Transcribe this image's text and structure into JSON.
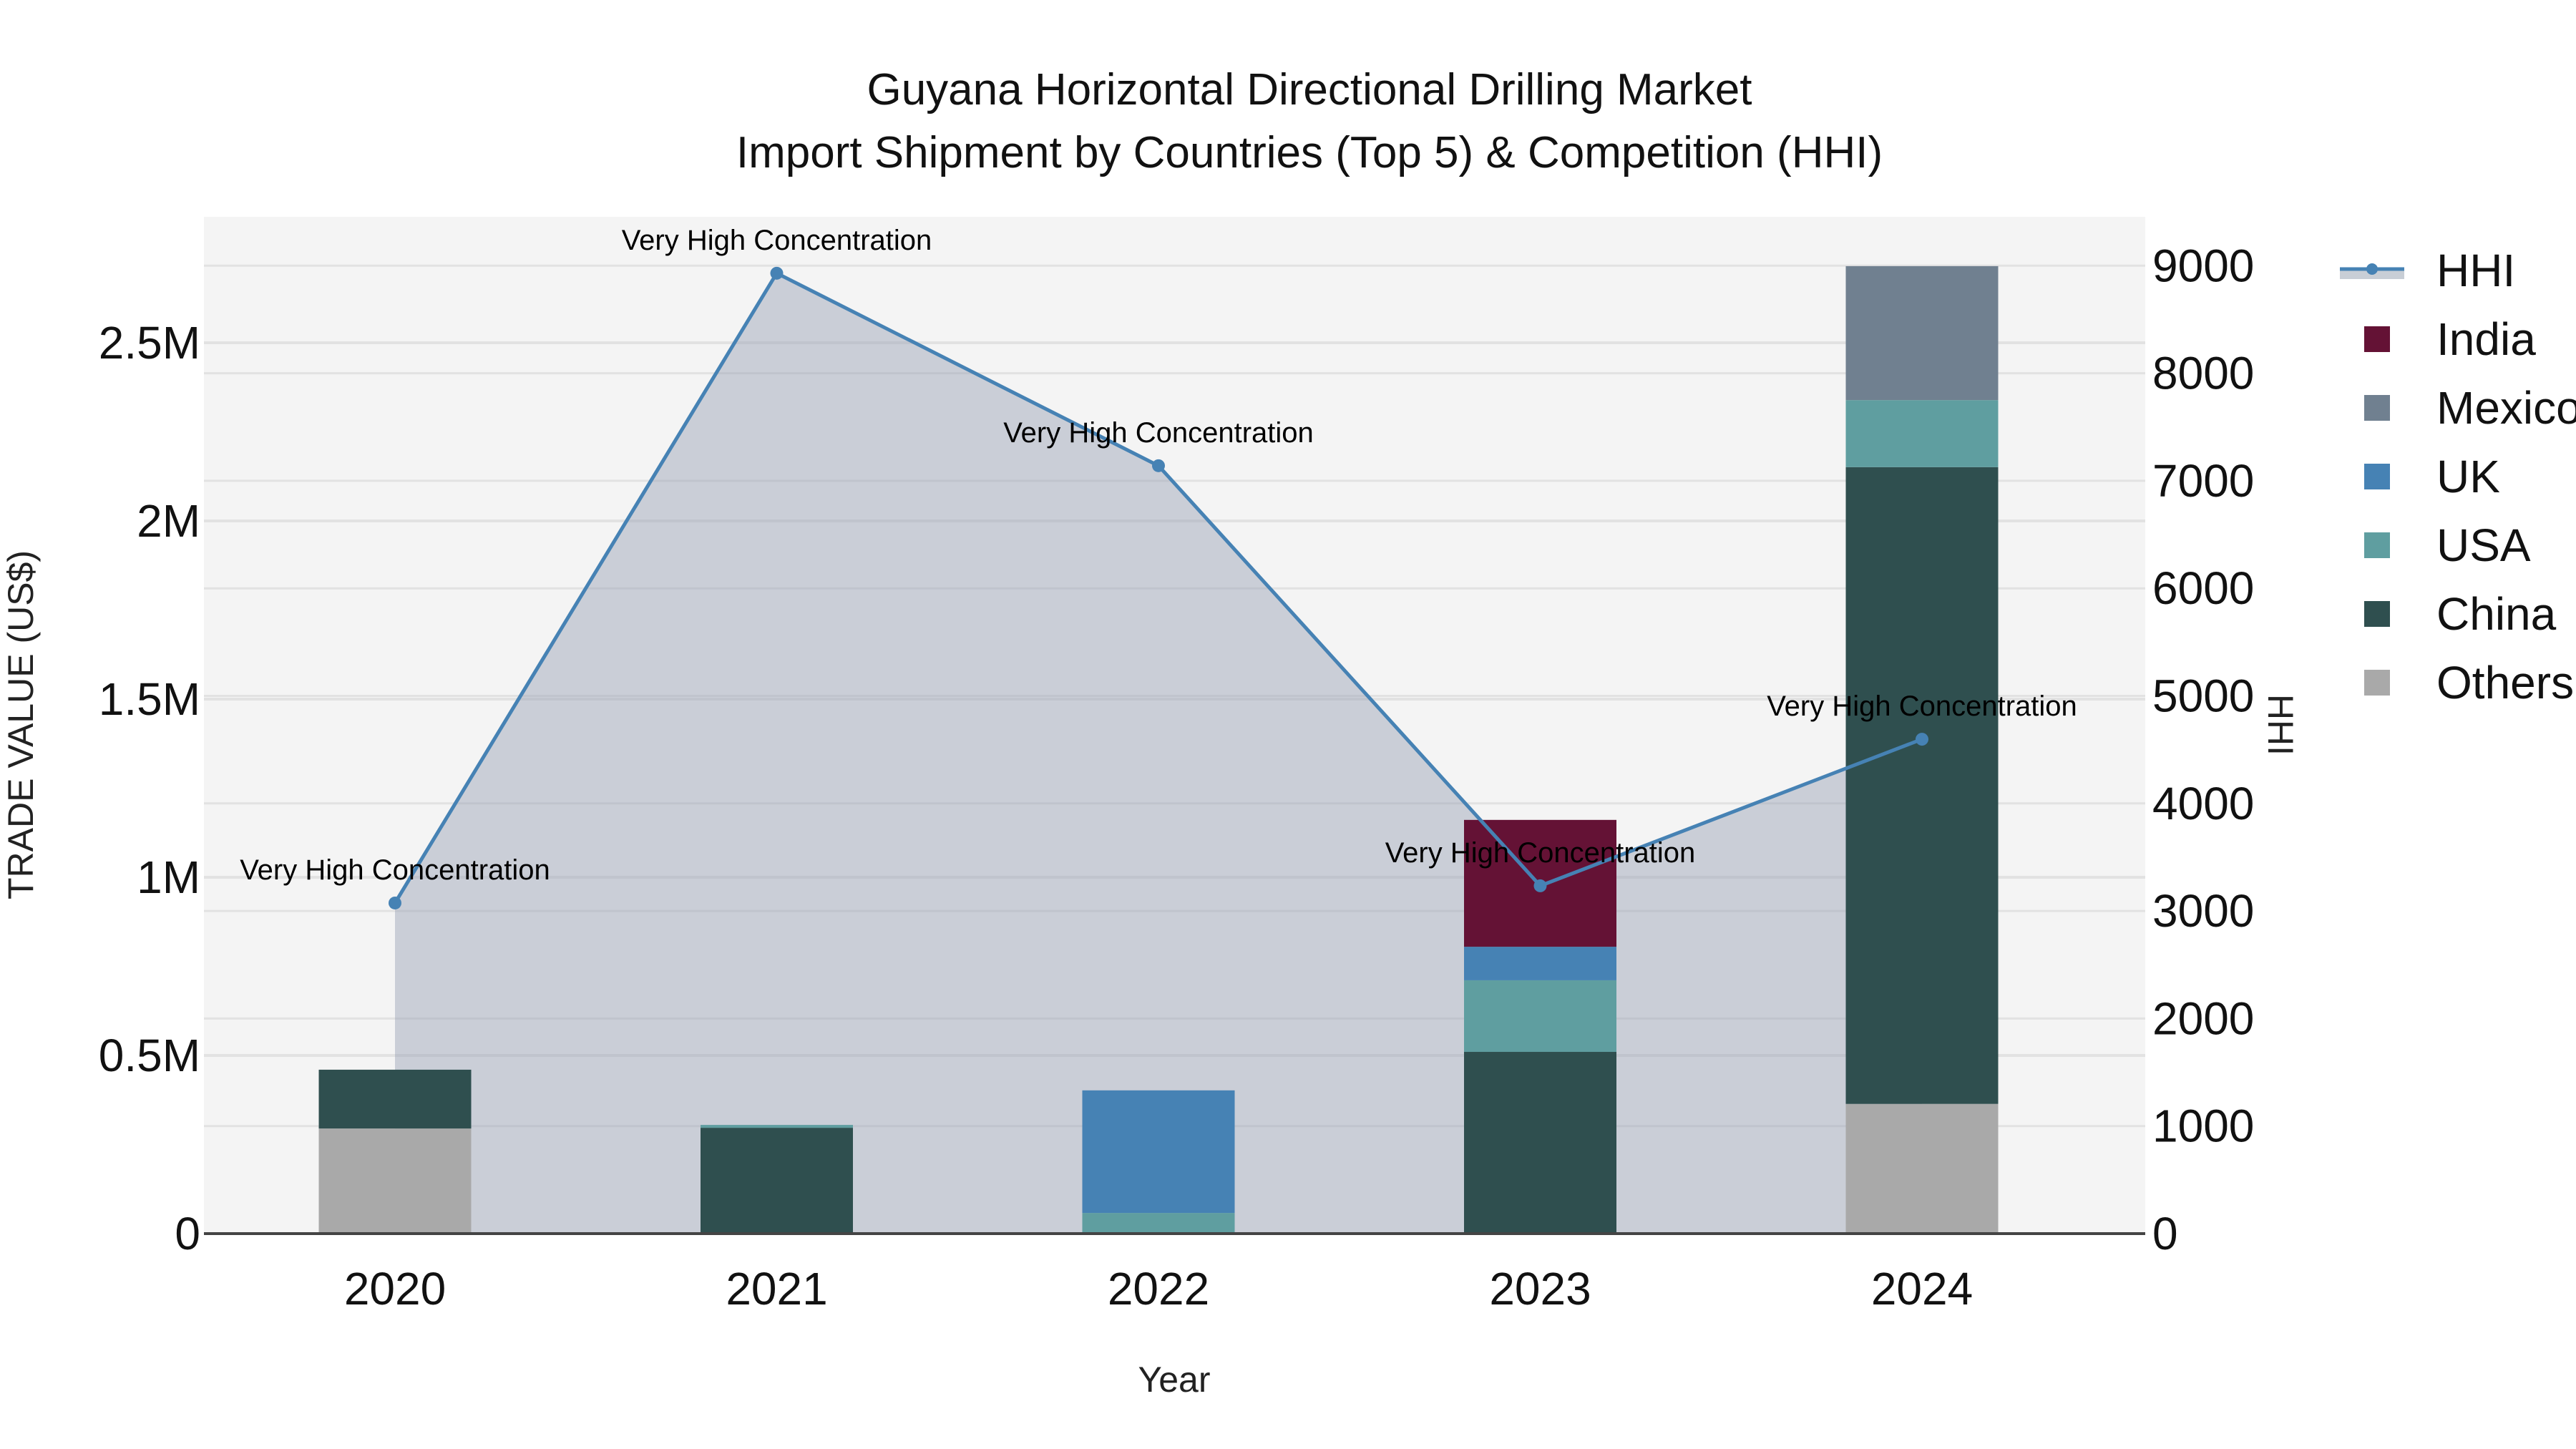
{
  "title": {
    "line1": "Guyana Horizontal Directional Drilling Market",
    "line2": "Import Shipment by Countries (Top 5) & Competition (HHI)"
  },
  "axes": {
    "x_label": "Year",
    "y_left_label": "TRADE VALUE (US$)",
    "y_right_label": "HHI",
    "y_left_ticks": [
      "0",
      "0.5M",
      "1M",
      "1.5M",
      "2M",
      "2.5M"
    ],
    "y_right_ticks": [
      "0",
      "1000",
      "2000",
      "3000",
      "4000",
      "5000",
      "6000",
      "7000",
      "8000",
      "9000"
    ],
    "x_ticks": [
      "2020",
      "2021",
      "2022",
      "2023",
      "2024"
    ]
  },
  "legend": {
    "items": [
      {
        "label": "HHI",
        "color": "#4682B4"
      },
      {
        "label": "India",
        "color": "#641235"
      },
      {
        "label": "Mexico",
        "color": "#708090"
      },
      {
        "label": "UK",
        "color": "#4682B4"
      },
      {
        "label": "USA",
        "color": "#5F9EA0"
      },
      {
        "label": "China",
        "color": "#2F4F4F"
      },
      {
        "label": "Others",
        "color": "#A9A9A9"
      }
    ]
  },
  "annotations": [
    "Very High Concentration",
    "Very High Concentration",
    "Very High Concentration",
    "Very High Concentration",
    "Very High Concentration"
  ],
  "chart_data": {
    "type": "bar",
    "title": "Guyana Horizontal Directional Drilling Market Import Shipment by Countries (Top 5) & Competition (HHI)",
    "xlabel": "Year",
    "ylabel": "TRADE VALUE (US$)",
    "y2label": "HHI",
    "categories": [
      "2020",
      "2021",
      "2022",
      "2023",
      "2024"
    ],
    "stacked": true,
    "series": [
      {
        "name": "Others",
        "color": "#A9A9A9",
        "values": [
          295000,
          0,
          0,
          0,
          364000
        ]
      },
      {
        "name": "China",
        "color": "#2F4F4F",
        "values": [
          165000,
          297000,
          0,
          510000,
          1787000
        ]
      },
      {
        "name": "USA",
        "color": "#5F9EA0",
        "values": [
          0,
          8000,
          58000,
          201000,
          188000
        ]
      },
      {
        "name": "UK",
        "color": "#4682B4",
        "values": [
          0,
          0,
          344000,
          94000,
          0
        ]
      },
      {
        "name": "Mexico",
        "color": "#708090",
        "values": [
          0,
          0,
          0,
          0,
          376000
        ]
      },
      {
        "name": "India",
        "color": "#641235",
        "values": [
          0,
          0,
          0,
          356000,
          0
        ]
      }
    ],
    "line_series": {
      "name": "HHI",
      "axis": "right",
      "color": "#4682B4",
      "fill": "tozeroy",
      "values": [
        3074,
        8930,
        7140,
        3234,
        4597
      ],
      "annotations": [
        "Very High Concentration",
        "Very High Concentration",
        "Very High Concentration",
        "Very High Concentration",
        "Very High Concentration"
      ]
    },
    "ylim": [
      0,
      2800000
    ],
    "y2lim": [
      0,
      9450
    ],
    "grid": true,
    "legend_position": "right"
  }
}
